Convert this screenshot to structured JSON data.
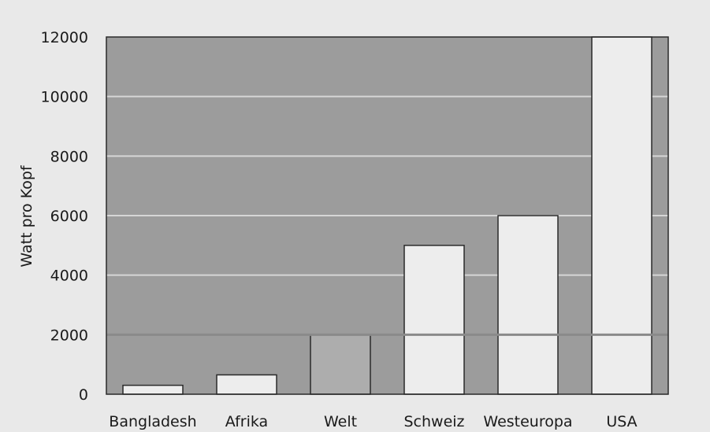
{
  "chart_data": {
    "type": "bar",
    "title": "",
    "xlabel": "",
    "ylabel": "Watt pro Kopf",
    "categories": [
      "Bangladesh",
      "Afrika",
      "Welt",
      "Schweiz",
      "Westeuropa",
      "USA"
    ],
    "values": [
      300,
      650,
      2000,
      5000,
      6000,
      12000
    ],
    "ylim": [
      0,
      12000
    ],
    "yticks": [
      "0",
      "2000",
      "4000",
      "6000",
      "8000",
      "10000",
      "12000"
    ],
    "grid": true,
    "reference_line": {
      "value": 2000
    },
    "colors": {
      "plot_background": "#9c9c9c",
      "bar": "#ededed",
      "bar_highlight": "#adadad",
      "gridline": "#d6d6d6",
      "reference_line": "#8a8a8a"
    }
  }
}
